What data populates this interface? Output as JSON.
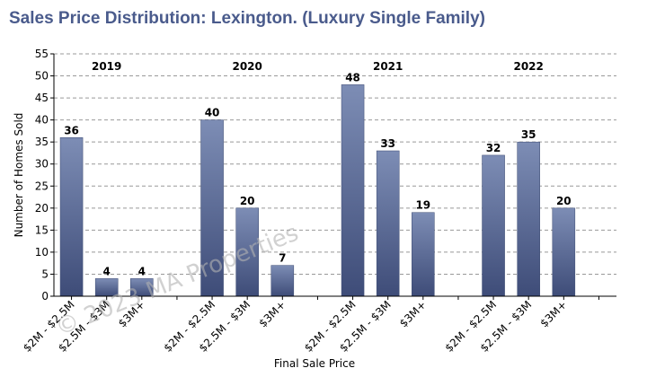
{
  "title": "Sales Price Distribution: Lexington. (Luxury Single Family)",
  "watermark": "© 2023 MA Properties",
  "chart_data": {
    "type": "bar",
    "title": "Sales Price Distribution: Lexington. (Luxury Single Family)",
    "xlabel": "Final Sale Price",
    "ylabel": "Number of Homes Sold",
    "ylim": [
      0,
      55
    ],
    "yticks": [
      0,
      5,
      10,
      15,
      20,
      25,
      30,
      35,
      40,
      45,
      50,
      55
    ],
    "grid": true,
    "bar_color": "#4a5b8c",
    "groups": [
      {
        "name": "2019",
        "categories": [
          "$2M - $2.5M",
          "$2.5M - $3M",
          "$3M+"
        ],
        "values": [
          36,
          4,
          4
        ]
      },
      {
        "name": "2020",
        "categories": [
          "$2M - $2.5M",
          "$2.5M - $3M",
          "$3M+"
        ],
        "values": [
          40,
          20,
          7
        ]
      },
      {
        "name": "2021",
        "categories": [
          "$2M - $2.5M",
          "$2.5M - $3M",
          "$3M+"
        ],
        "values": [
          48,
          33,
          19
        ]
      },
      {
        "name": "2022",
        "categories": [
          "$2M - $2.5M",
          "$2.5M - $3M",
          "$3M+"
        ],
        "values": [
          32,
          35,
          20
        ]
      }
    ]
  }
}
